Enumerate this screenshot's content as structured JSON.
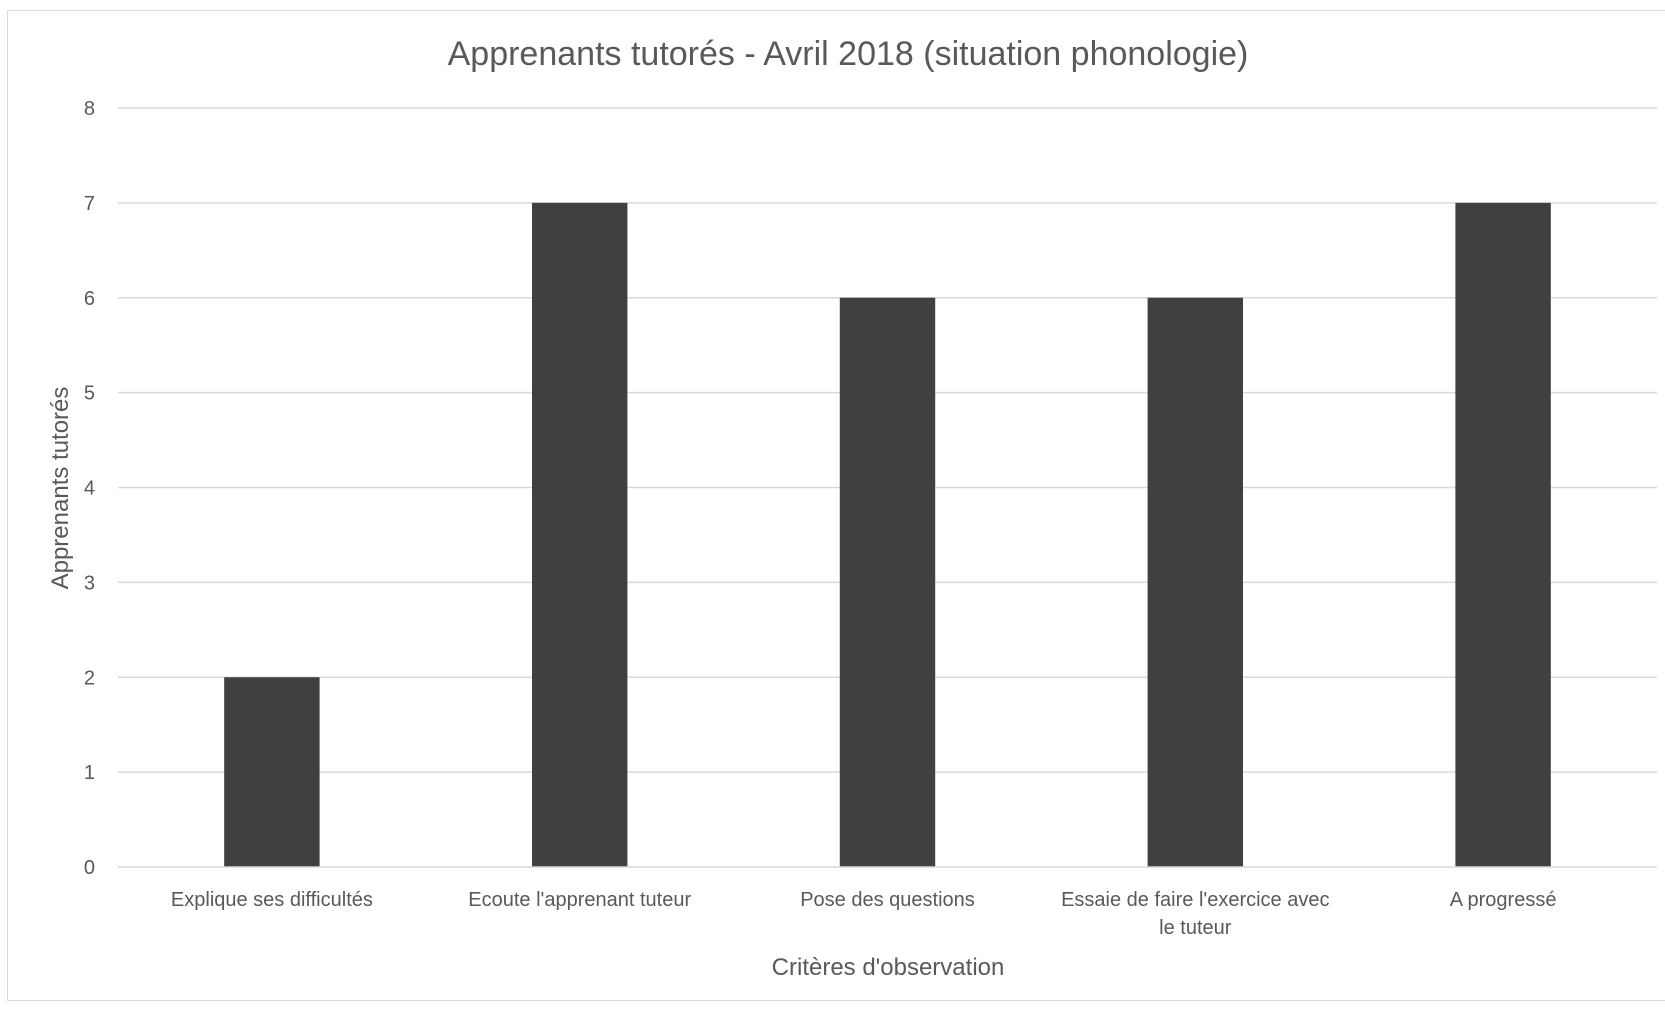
{
  "chart_data": {
    "type": "bar",
    "title": "Apprenants tutorés - Avril 2018 (situation phonologie)",
    "xlabel": "Critères d'observation",
    "ylabel": "Apprenants tutorés",
    "categories": [
      [
        "Explique ses difficultés"
      ],
      [
        "Ecoute l'apprenant tuteur"
      ],
      [
        "Pose des questions"
      ],
      [
        "Essaie de faire l'exercice avec",
        "le tuteur"
      ],
      [
        "A progressé"
      ]
    ],
    "values": [
      2,
      7,
      6,
      6,
      7
    ],
    "ylim": [
      0,
      8
    ],
    "yticks": [
      "0",
      "1",
      "2",
      "3",
      "4",
      "5",
      "6",
      "7",
      "8"
    ],
    "grid": true,
    "legend": "none",
    "colors": {
      "bar": "#404040",
      "grid": "#d9d9d9",
      "text": "#595959"
    }
  }
}
